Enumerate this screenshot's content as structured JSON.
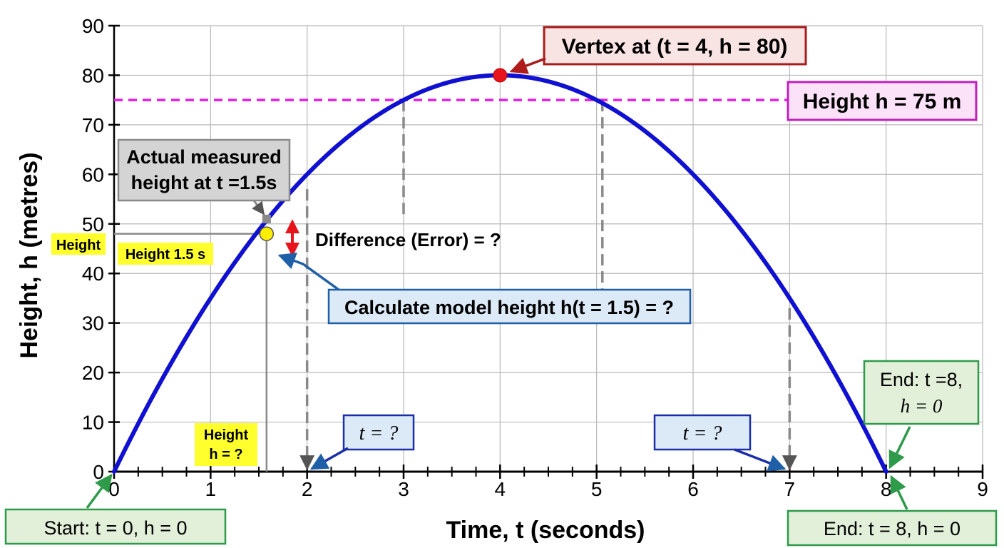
{
  "chart_data": {
    "type": "line",
    "title": "",
    "xlabel": "Time, t (seconds)",
    "ylabel": "Height, h (metres)",
    "xlim": [
      0,
      9
    ],
    "ylim": [
      0,
      90
    ],
    "x_ticks": [
      "0",
      "1",
      "2",
      "3",
      "4",
      "5",
      "6",
      "7",
      "8",
      "9"
    ],
    "y_ticks": [
      "0",
      "10",
      "20",
      "30",
      "40",
      "50",
      "60",
      "70",
      "80",
      "90"
    ],
    "grid": true,
    "series": [
      {
        "x": [
          0,
          0.5,
          1,
          1.5,
          2,
          2.5,
          3,
          3.5,
          4,
          4.5,
          5,
          5.5,
          6,
          6.5,
          7,
          7.5,
          8
        ],
        "y": [
          0,
          18.75,
          35,
          48.75,
          60,
          68.75,
          75,
          78.75,
          80,
          78.75,
          75,
          68.75,
          60,
          48.75,
          35,
          18.75,
          0
        ],
        "color": "#1010d0"
      }
    ],
    "reference_line": {
      "y": 75,
      "color": "#e020e0",
      "style": "dashed"
    },
    "colors": {
      "curve": "#1010d0",
      "reference": "#e020e0",
      "vertex_point": "#e8141c",
      "model_point": "#ffee00",
      "measured_point": "#8a8a8a",
      "error_arrow": "#e8141c",
      "blue_box_fill": "#dce9f7",
      "blue_box_border": "#1f5fa8",
      "green_box_fill": "#e2efd9",
      "green_box_border": "#2e9a4a",
      "red_box_fill": "#f9e4e4",
      "red_box_border": "#a81c1c",
      "magenta_box_fill": "#fbe2f8",
      "magenta_box_border": "#c020b8",
      "highlight": "#ffff2e"
    },
    "annotations": {
      "vertex": "Vertex at (t = 4, h = 80)",
      "reference": "Height h = 75 m",
      "measured_line1": "Actual measured",
      "measured_line2": "height at t =1.5s",
      "height_tag": "Height",
      "height_15": "Height 1.5 s",
      "difference": "Difference (Error) = ?",
      "model_height": "Calculate model height h(t = 1.5) = ?",
      "t_left": "t = ?",
      "t_right": "t = ?",
      "height_unknown_1": "Height",
      "height_unknown_2": "h = ?",
      "end_upper_1": "End: t =8,",
      "end_upper_2": "h = 0",
      "start": "Start: t = 0, h = 0",
      "end_lower": "End: t = 8, h = 0"
    }
  }
}
